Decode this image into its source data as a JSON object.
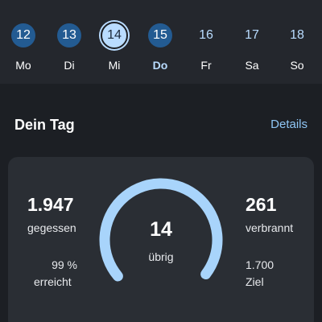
{
  "week": {
    "days": [
      {
        "date": "12",
        "label": "Mo"
      },
      {
        "date": "13",
        "label": "Di"
      },
      {
        "date": "14",
        "label": "Mi"
      },
      {
        "date": "15",
        "label": "Do"
      },
      {
        "date": "16",
        "label": "Fr"
      },
      {
        "date": "17",
        "label": "Sa"
      },
      {
        "date": "18",
        "label": "So"
      }
    ]
  },
  "section": {
    "title": "Dein Tag",
    "details": "Details"
  },
  "summary": {
    "eaten_value": "1.947",
    "eaten_label": "gegessen",
    "percent_value": "99 %",
    "percent_label": "erreicht",
    "remaining_value": "14",
    "remaining_label": "übrig",
    "burned_value": "261",
    "burned_label": "verbrannt",
    "goal_value": "1.700",
    "goal_label": "Ziel",
    "progress_fraction": 0.99
  },
  "colors": {
    "accent": "#8fc6f5",
    "gauge": "#a8d4fb",
    "filled_day": "#235b92",
    "selected_day": "#b9dcff"
  }
}
